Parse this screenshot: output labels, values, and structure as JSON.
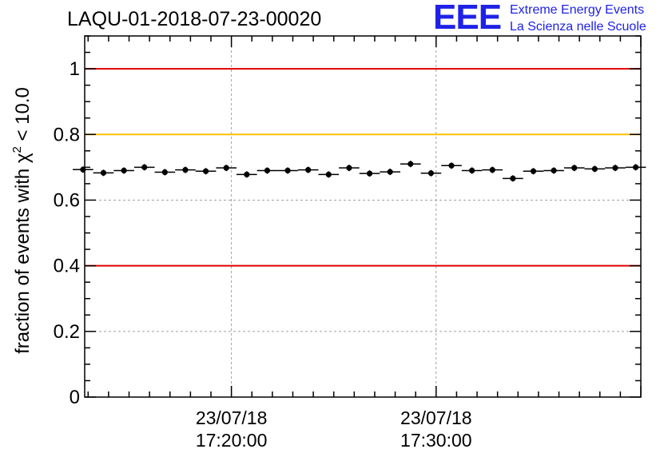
{
  "chart_data": {
    "type": "scatter",
    "title": "LAQU-01-2018-07-23-00020",
    "ylabel": "fraction of events with",
    "ylabel_symbol": "χ",
    "ylabel_power": "2",
    "ylabel_threshold": "< 10.0",
    "ylim": [
      0,
      1.1
    ],
    "yticks": [
      {
        "value": 0,
        "label": "0"
      },
      {
        "value": 0.2,
        "label": "0.2"
      },
      {
        "value": 0.4,
        "label": "0.4"
      },
      {
        "value": 0.6,
        "label": "0.6"
      },
      {
        "value": 0.8,
        "label": "0.8"
      },
      {
        "value": 1.0,
        "label": "1"
      }
    ],
    "xlim": [
      "2018-07-23 17:12:50",
      "2018-07-23 17:40:00"
    ],
    "xticks": [
      {
        "time": "2018-07-23 17:20:00",
        "date_label": "23/07/18",
        "time_label": "17:20:00"
      },
      {
        "time": "2018-07-23 17:30:00",
        "date_label": "23/07/18",
        "time_label": "17:30:00"
      }
    ],
    "grid": true,
    "reference_lines": [
      {
        "y": 1.0,
        "color": "#e00000"
      },
      {
        "y": 0.8,
        "color": "#ffc000"
      },
      {
        "y": 0.4,
        "color": "#e00000"
      }
    ],
    "series": [
      {
        "x": [
          "17:12:45",
          "17:13:45",
          "17:14:45",
          "17:15:45",
          "17:16:45",
          "17:17:45",
          "17:18:45",
          "17:19:45",
          "17:20:45",
          "17:21:45",
          "17:22:45",
          "17:23:45",
          "17:24:45",
          "17:25:45",
          "17:26:45",
          "17:27:45",
          "17:28:45",
          "17:29:45",
          "17:30:45",
          "17:31:45",
          "17:32:45",
          "17:33:45",
          "17:34:45",
          "17:35:45",
          "17:36:45",
          "17:37:45",
          "17:38:45",
          "17:39:45"
        ],
        "values": [
          0.693,
          0.683,
          0.69,
          0.7,
          0.685,
          0.692,
          0.688,
          0.698,
          0.678,
          0.69,
          0.69,
          0.692,
          0.678,
          0.698,
          0.681,
          0.686,
          0.71,
          0.682,
          0.705,
          0.69,
          0.692,
          0.666,
          0.688,
          0.69,
          0.698,
          0.695,
          0.698,
          0.7
        ]
      }
    ]
  },
  "logo": {
    "mark": "EEE",
    "line1": "Extreme Energy Events",
    "line2": "La Scienza nelle Scuole"
  }
}
